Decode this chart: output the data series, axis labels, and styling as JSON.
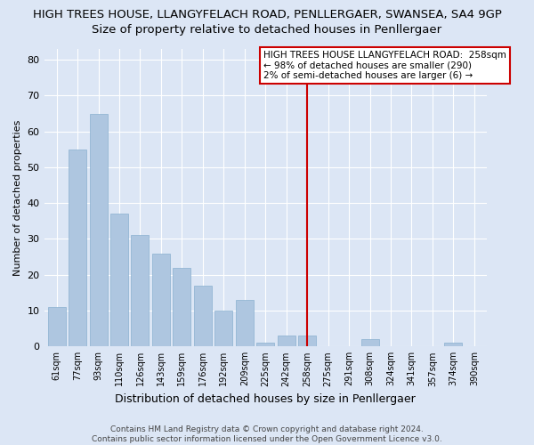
{
  "title": "HIGH TREES HOUSE, LLANGYFELACH ROAD, PENLLERGAER, SWANSEA, SA4 9GP",
  "subtitle": "Size of property relative to detached houses in Penllergaer",
  "xlabel": "Distribution of detached houses by size in Penllergaer",
  "ylabel": "Number of detached properties",
  "categories": [
    "61sqm",
    "77sqm",
    "93sqm",
    "110sqm",
    "126sqm",
    "143sqm",
    "159sqm",
    "176sqm",
    "192sqm",
    "209sqm",
    "225sqm",
    "242sqm",
    "258sqm",
    "275sqm",
    "291sqm",
    "308sqm",
    "324sqm",
    "341sqm",
    "357sqm",
    "374sqm",
    "390sqm"
  ],
  "values": [
    11,
    55,
    65,
    37,
    31,
    26,
    22,
    17,
    10,
    13,
    1,
    3,
    3,
    0,
    0,
    2,
    0,
    0,
    0,
    1,
    0
  ],
  "bar_color": "#aec6e0",
  "bar_edge_color": "#8ab0d0",
  "highlight_index": 12,
  "highlight_line_color": "#cc0000",
  "ylim": [
    0,
    83
  ],
  "yticks": [
    0,
    10,
    20,
    30,
    40,
    50,
    60,
    70,
    80
  ],
  "annotation_text": "HIGH TREES HOUSE LLANGYFELACH ROAD:  258sqm\n← 98% of detached houses are smaller (290)\n2% of semi-detached houses are larger (6) →",
  "annotation_box_facecolor": "#ffffff",
  "annotation_box_edge": "#cc0000",
  "footer": "Contains HM Land Registry data © Crown copyright and database right 2024.\nContains public sector information licensed under the Open Government Licence v3.0.",
  "background_color": "#dce6f5",
  "plot_background_color": "#dce6f5",
  "title_fontsize": 9.5,
  "subtitle_fontsize": 9.5,
  "ylabel_fontsize": 8,
  "xlabel_fontsize": 9
}
